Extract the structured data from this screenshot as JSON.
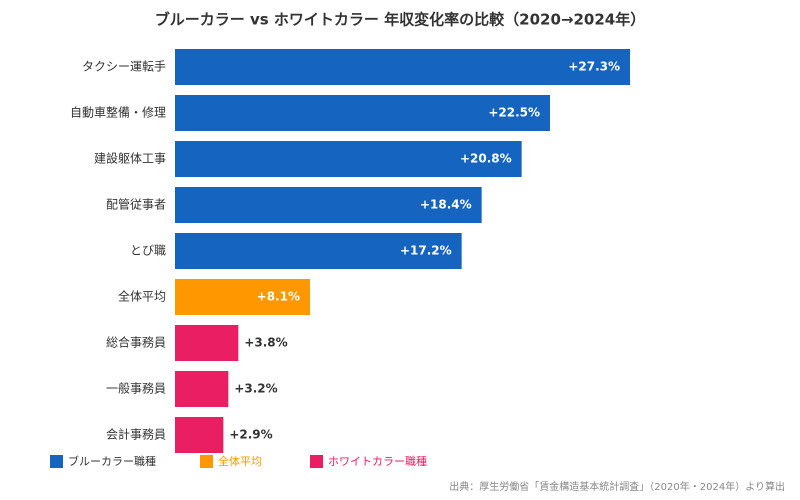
{
  "chart_data": {
    "type": "bar",
    "orientation": "horizontal",
    "title": "ブルーカラー vs ホワイトカラー 年収変化率の比較（2020→2024年）",
    "categories": [
      "タクシー運転手",
      "自動車整備・修理",
      "建設躯体工事",
      "配管従事者",
      "とび職",
      "全体平均",
      "総合事務員",
      "一般事務員",
      "会計事務員"
    ],
    "values": [
      27.3,
      22.5,
      20.8,
      18.4,
      17.2,
      8.1,
      3.8,
      3.2,
      2.9
    ],
    "value_labels": [
      "+27.3%",
      "+22.5%",
      "+20.8%",
      "+18.4%",
      "+17.2%",
      "+8.1%",
      "+3.8%",
      "+3.2%",
      "+2.9%"
    ],
    "colors": [
      "#1565c0",
      "#1565c0",
      "#1565c0",
      "#1565c0",
      "#1565c0",
      "#ff9800",
      "#e91e63",
      "#e91e63",
      "#e91e63"
    ],
    "legend": [
      {
        "name": "ブルーカラー職種",
        "color": "#1565c0"
      },
      {
        "name": "全体平均",
        "color": "#ff9800"
      },
      {
        "name": "ホワイトカラー職種",
        "color": "#e91e63"
      }
    ],
    "source": "出典：厚生労働省「賃金構造基本統計調査」（2020年・2024年）より算出"
  }
}
